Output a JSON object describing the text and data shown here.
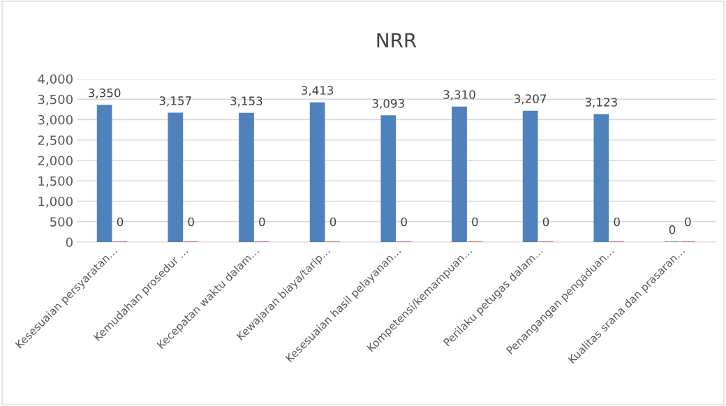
{
  "chart_data": {
    "type": "bar",
    "title": "NRR",
    "categories": [
      "Kesesuaian persyaratan…",
      "Kemudahan prosedur …",
      "Kecepatan waktu dalam…",
      "Kewajaran biaya/tarip…",
      "Kesesuaian hasil pelayanan…",
      "Kompetensi/kemampuan…",
      "Perilaku petugas dalam…",
      "Penangangan pengaduan…",
      "Kualitas srana dan prasaran…"
    ],
    "series": [
      {
        "color": "#4f81bd",
        "values": [
          3350,
          3157,
          3153,
          3413,
          3093,
          3310,
          3207,
          3123,
          0
        ],
        "value_labels": [
          "3,350",
          "3,157",
          "3,153",
          "3,413",
          "3,093",
          "3,310",
          "3,207",
          "3,123",
          "0"
        ]
      },
      {
        "color": "#c0504d",
        "values": [
          0,
          0,
          0,
          0,
          0,
          0,
          0,
          0,
          0
        ],
        "value_labels": [
          "0",
          "0",
          "0",
          "0",
          "0",
          "0",
          "0",
          "0",
          "0"
        ]
      }
    ],
    "ylim": [
      0,
      4000
    ],
    "yticks": [
      0,
      500,
      {
        "value": 1000,
        "label": "1,000"
      },
      {
        "value": 1500,
        "label": "1,500"
      },
      {
        "value": 2000,
        "label": "2,000"
      },
      {
        "value": 2500,
        "label": "2,500"
      },
      {
        "value": 3000,
        "label": "3,000"
      },
      {
        "value": 3500,
        "label": "3,500"
      },
      {
        "value": 4000,
        "label": "4,000"
      }
    ],
    "grid": "y"
  }
}
